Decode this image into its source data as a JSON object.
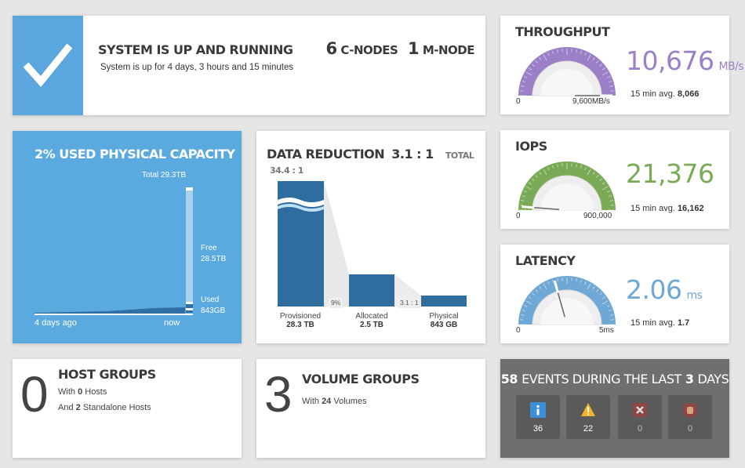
{
  "status": {
    "title": "SYSTEM IS UP AND RUNNING",
    "uptime": "System is up for 4 days, 3 hours and 15 minutes",
    "c_nodes_count": "6",
    "c_nodes_label": "C-NODES",
    "m_nodes_count": "1",
    "m_nodes_label": "M-NODE",
    "icon": "checkmark-icon"
  },
  "throughput": {
    "title": "THROUGHPUT",
    "value": "10,676",
    "unit": "MB/s",
    "min_label": "0",
    "max_label": "9,600MB/s",
    "avg_label": "15 min avg.",
    "avg_value": "8,066",
    "gauge_level": 1.0,
    "color": "#9b7fc7"
  },
  "iops": {
    "title": "IOPS",
    "value": "21,376",
    "unit": "",
    "min_label": "0",
    "max_label": "900,000",
    "avg_label": "15 min avg.",
    "avg_value": "16,162",
    "gauge_level": 0.024,
    "color": "#7aaa55"
  },
  "latency": {
    "title": "LATENCY",
    "value": "2.06",
    "unit": "ms",
    "min_label": "0",
    "max_label": "5ms",
    "avg_label": "15 min avg.",
    "avg_value": "1.7",
    "gauge_level": 0.412,
    "color": "#6fa8d4"
  },
  "capacity": {
    "title": "2% USED PHYSICAL CAPACITY",
    "total_label": "Total 29.3TB",
    "free_label": "Free",
    "free_value": "28.5TB",
    "used_label": "Used",
    "used_value": "843GB",
    "x_start": "4 days ago",
    "x_end": "now",
    "used_fraction": 0.02,
    "bg_color": "#5aaae0"
  },
  "reduction": {
    "title": "DATA REDUCTION",
    "ratio": "3.1 : 1",
    "total_label": "TOTAL",
    "total_ratio": "34.4 : 1",
    "pct_label": "9%",
    "ratio_small": "3.1 : 1",
    "bars": [
      {
        "label": "Provisioned",
        "value_label": "28.3 TB",
        "value": 28.3
      },
      {
        "label": "Allocated",
        "value_label": "2.5 TB",
        "value": 2.5
      },
      {
        "label": "Physical",
        "value_label": "843 GB",
        "value": 0.843
      }
    ],
    "bar_color": "#2f6d9e"
  },
  "host_groups": {
    "count": "0",
    "title": "HOST GROUPS",
    "line1_prefix": "With",
    "line1_count": "0",
    "line1_suffix": "Hosts",
    "line2_prefix": "And",
    "line2_count": "2",
    "line2_suffix": "Standalone Hosts"
  },
  "volume_groups": {
    "count": "3",
    "title": "VOLUME GROUPS",
    "line1_prefix": "With",
    "line1_count": "24",
    "line1_suffix": "Volumes"
  },
  "events": {
    "count": "58",
    "middle": "EVENTS DURING THE LAST",
    "days": "3",
    "days_suffix": "DAYS",
    "items": [
      {
        "icon": "info-icon",
        "count": "36",
        "color": "#3b8fd6"
      },
      {
        "icon": "warning-icon",
        "count": "22",
        "color": "#f0b429"
      },
      {
        "icon": "error-icon",
        "count": "0",
        "color": "#c0392b"
      },
      {
        "icon": "critical-icon",
        "count": "0",
        "color": "#c0392b"
      }
    ]
  }
}
